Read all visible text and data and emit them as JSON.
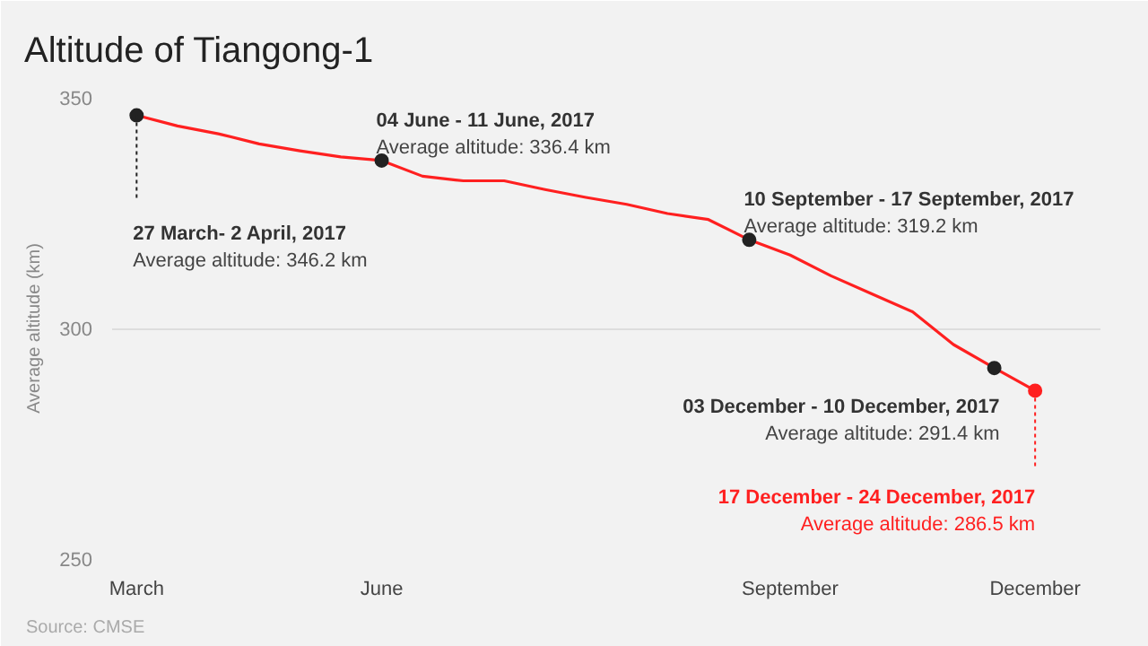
{
  "chart_data": {
    "type": "line",
    "title": "Altitude of Tiangong-1",
    "ylabel": "Average altitude (km)",
    "categories": [
      "March",
      null,
      null,
      null,
      null,
      null,
      "June",
      null,
      null,
      null,
      null,
      null,
      null,
      null,
      null,
      null,
      "September",
      null,
      null,
      null,
      null,
      null,
      "December"
    ],
    "series": [
      {
        "color": "#ff2020",
        "values": [
          346.2,
          343.9,
          342.2,
          340.0,
          338.5,
          337.2,
          336.4,
          333.0,
          332.0,
          332.0,
          330.1,
          328.4,
          326.9,
          324.9,
          323.6,
          319.2,
          315.9,
          311.4,
          307.5,
          303.6,
          296.5,
          291.4,
          286.5
        ]
      },
      {
        "type": "scatter",
        "marker": "circle",
        "colors": [
          "#222222",
          null,
          null,
          null,
          null,
          null,
          "#222222",
          null,
          null,
          null,
          null,
          null,
          null,
          null,
          null,
          "#222222",
          null,
          null,
          null,
          null,
          null,
          "#222222",
          "#ff2020"
        ],
        "values": [
          346.2,
          null,
          null,
          null,
          null,
          null,
          336.4,
          null,
          null,
          null,
          null,
          null,
          null,
          null,
          null,
          319.2,
          null,
          null,
          null,
          null,
          null,
          291.4,
          286.5
        ]
      }
    ],
    "ylim": [
      250,
      350
    ],
    "yticks": [
      250,
      300,
      350
    ],
    "grid": "y",
    "annotations": [
      {
        "text": "27 March- 2 April, 2017",
        "x": "March",
        "y": 346.2
      },
      "Average altitude: 346.2 km",
      "04 June - 11 June, 2017",
      "Average altitude: 336.4 km",
      "10 September - 17 September, 2017",
      "Average altitude: 319.2 km",
      "03 December - 10 December, 2017",
      "Average altitude: 291.4 km",
      {
        "text": "17 December - 24 December, 2017",
        "x": "December",
        "y": 286.5
      },
      "Average altitude: 286.5 km",
      "Source: CMSE"
    ]
  }
}
